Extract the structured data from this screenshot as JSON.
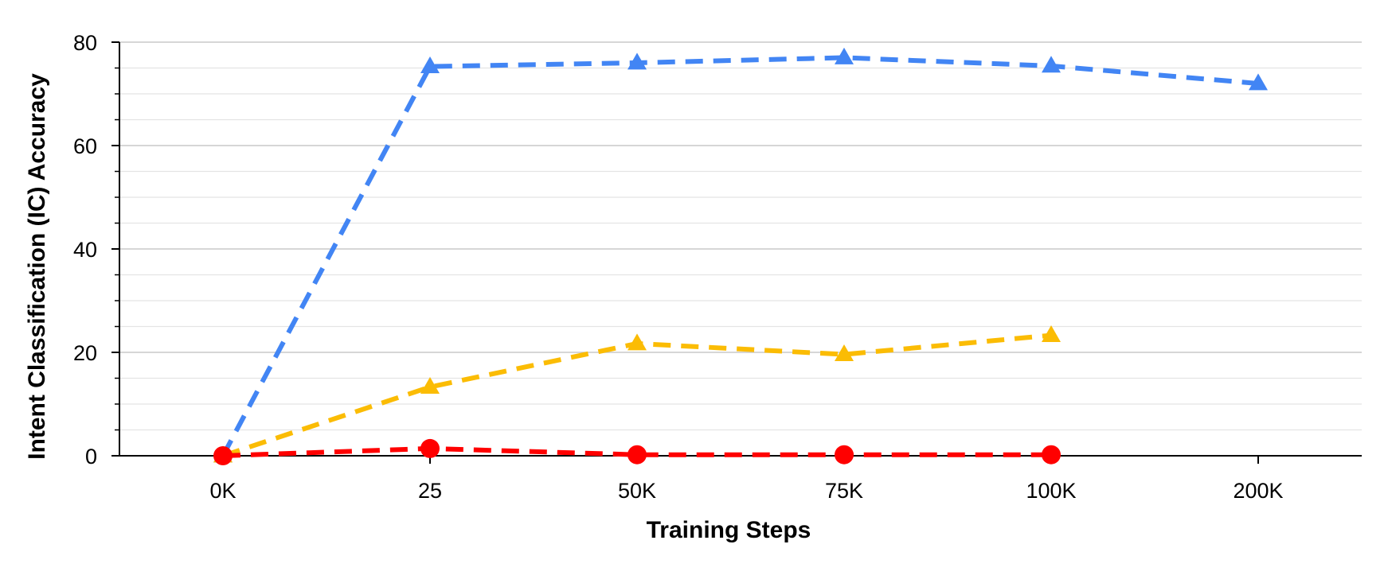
{
  "chart_data": {
    "type": "line",
    "title": "",
    "xlabel": "Training Steps",
    "ylabel": "Intent Classification (IC) Accuracy",
    "categories": [
      "0K",
      "25",
      "50K",
      "75K",
      "100K",
      "200K"
    ],
    "ylim": [
      0,
      80
    ],
    "yticks": [
      0,
      20,
      40,
      60,
      80
    ],
    "minor_ticks_per_interval": 3,
    "grid": true,
    "legend": "none",
    "series": [
      {
        "color": "#4285F4",
        "marker": "triangle",
        "line_style": "dashed",
        "values": [
          0,
          75.3,
          76,
          77,
          75.4,
          72
        ]
      },
      {
        "color": "#FBBC04",
        "marker": "triangle",
        "line_style": "dashed",
        "values": [
          0,
          13.3,
          21.7,
          19.6,
          23.3,
          null
        ]
      },
      {
        "color": "#FF0000",
        "marker": "circle",
        "line_style": "dashed",
        "values": [
          0,
          1.4,
          0.2,
          0.2,
          0.2,
          null
        ]
      }
    ]
  }
}
